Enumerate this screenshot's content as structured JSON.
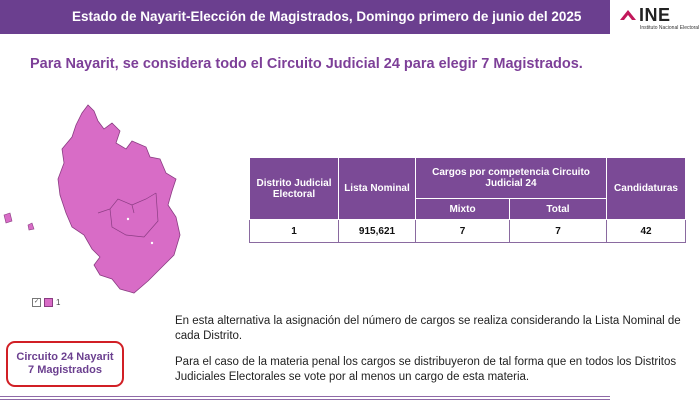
{
  "header": {
    "title": "Estado de Nayarit-Elección de Magistrados, Domingo primero de junio del 2025"
  },
  "logo": {
    "text": "INE",
    "subtext": "Instituto Nacional Electoral"
  },
  "subtitle": "Para Nayarit, se considera todo el Circuito Judicial 24 para elegir 7 Magistrados.",
  "map": {
    "fill_color": "#d86cc6",
    "stroke_color": "#8a3c82"
  },
  "legend": {
    "check": "✓",
    "label": "1"
  },
  "table": {
    "headers": {
      "district": "Distrito Judicial Electoral",
      "list": "Lista Nominal",
      "cargos": "Cargos por competencia Circuito Judicial 24",
      "mixto": "Mixto",
      "total": "Total",
      "candidaturas": "Candidaturas"
    },
    "rows": [
      {
        "district": "1",
        "list": "915,621",
        "mixto": "7",
        "total": "7",
        "candidaturas": "42"
      }
    ]
  },
  "circuit_box": {
    "line1": "Circuito 24 Nayarit",
    "line2": "7 Magistrados"
  },
  "paragraphs": {
    "p1": "En esta alternativa la asignación del número de cargos se realiza considerando la Lista Nominal de cada Distrito.",
    "p2": "Para el caso de la materia penal los cargos se distribuyeron de tal forma que en todos los Distritos Judiciales Electorales se vote por al menos un cargo de esta materia."
  },
  "colors": {
    "header_bg": "#6b3f8f",
    "table_header": "#7b4a96",
    "accent_text": "#7d3f98",
    "box_border": "#d11f25"
  }
}
